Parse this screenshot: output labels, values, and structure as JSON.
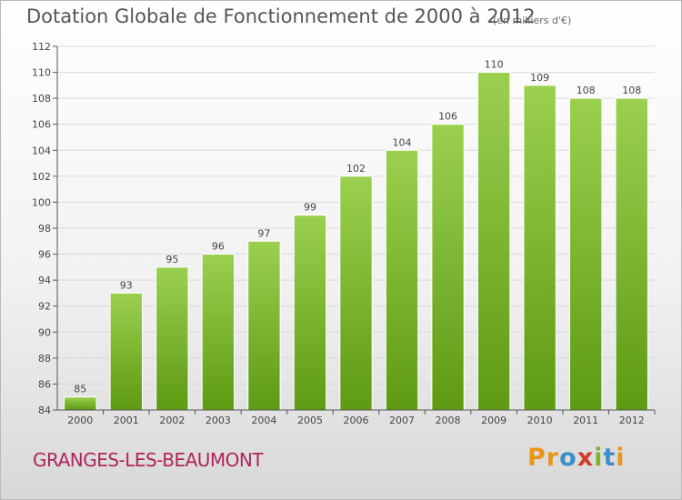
{
  "header": {
    "title": "Dotation Globale de Fonctionnement de 2000 à 2012",
    "unit": "(en milliers d'€)"
  },
  "footer": {
    "commune": "GRANGES-LES-BEAUMONT",
    "logo": [
      "P",
      "r",
      "o",
      "x",
      "i",
      "t",
      "i"
    ]
  },
  "colors": {
    "bar_top": "#9bd04f",
    "bar_bottom": "#5e9a12",
    "bar_edge": "#ffffff",
    "grid": "#d9d9d9",
    "axis": "#555555",
    "text": "#444444"
  },
  "chart_data": {
    "type": "bar",
    "title": "Dotation Globale de Fonctionnement de 2000 à 2012",
    "subtitle": "(en milliers d'€)",
    "xlabel": "",
    "ylabel": "",
    "categories": [
      "2000",
      "2001",
      "2002",
      "2003",
      "2004",
      "2005",
      "2006",
      "2007",
      "2008",
      "2009",
      "2010",
      "2011",
      "2012"
    ],
    "values": [
      85,
      93,
      95,
      96,
      97,
      99,
      102,
      104,
      106,
      110,
      109,
      108,
      108
    ],
    "ylim": [
      84,
      112
    ],
    "yticks": [
      84,
      86,
      88,
      90,
      92,
      94,
      96,
      98,
      100,
      102,
      104,
      106,
      108,
      110,
      112
    ],
    "grid": true,
    "legend": "none"
  }
}
